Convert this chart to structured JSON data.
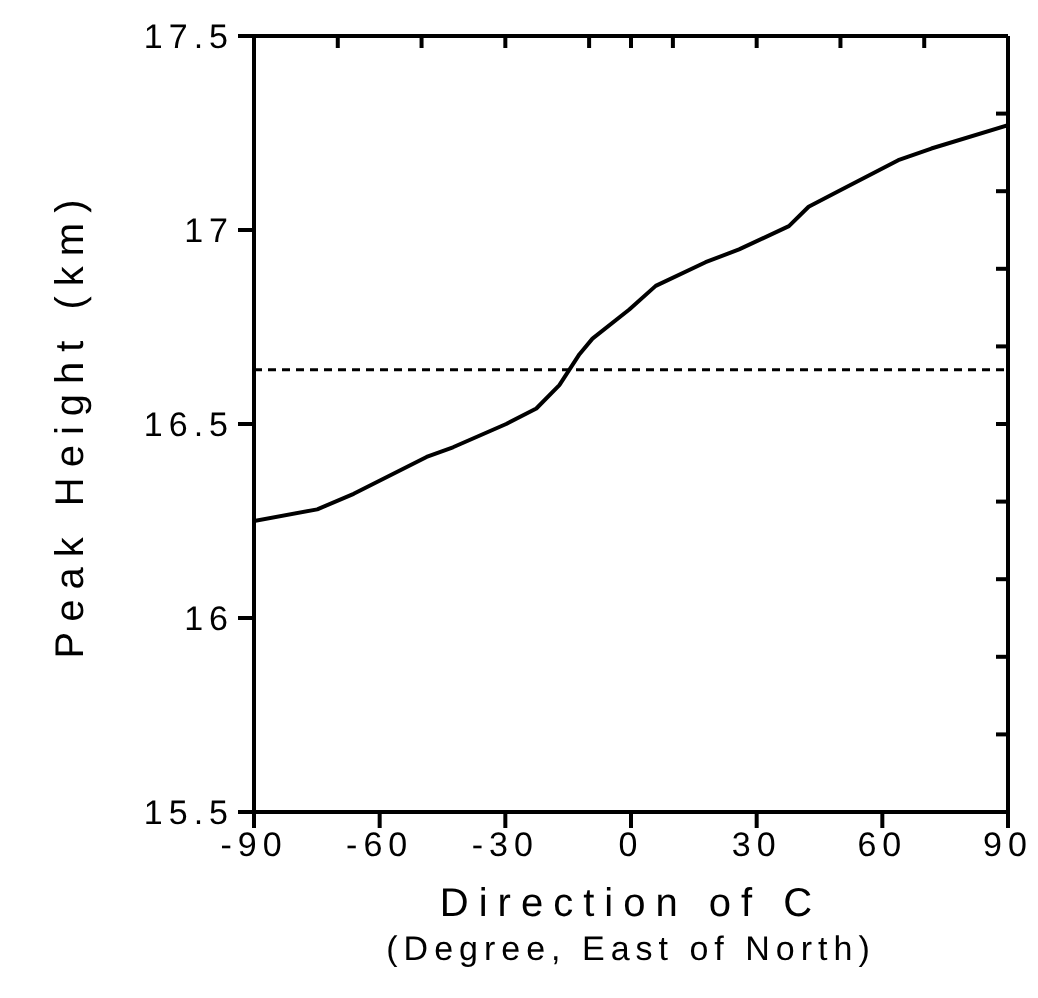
{
  "chart_data": {
    "type": "line",
    "xlabel": "Direction of C\n(Degree, East of North)",
    "ylabel": "Peak Height (km)",
    "x": [
      -90,
      -74.9,
      -66.2,
      -48.8,
      -42.5,
      -29.8,
      -22.6,
      -17.1,
      -12.3,
      -9.2,
      -0.4,
      5.9,
      17.8,
      25.8,
      37.7,
      42.4,
      49.5,
      63.8,
      71.7,
      90
    ],
    "series": [
      {
        "color": "#000000",
        "values": [
          16.25,
          16.28,
          16.32,
          16.415,
          16.44,
          16.5,
          16.54,
          16.6,
          16.68,
          16.72,
          16.795,
          16.856,
          16.917,
          16.95,
          17.01,
          17.06,
          17.1,
          17.18,
          17.21,
          17.27
        ]
      }
    ],
    "xlim": [
      -90,
      90
    ],
    "xticks": [
      -90,
      -60,
      -30,
      0,
      30,
      60,
      90
    ],
    "ylim": [
      15.5,
      17.5
    ],
    "yticks": [
      15.5,
      16,
      16.5,
      17,
      17.5
    ],
    "ref_lines": [
      {
        "axis": "y",
        "value": 16.64,
        "line_style": "dashed",
        "color": "#000000"
      }
    ],
    "grid": false,
    "legend": false,
    "marker": "none",
    "line_style": "solid"
  }
}
